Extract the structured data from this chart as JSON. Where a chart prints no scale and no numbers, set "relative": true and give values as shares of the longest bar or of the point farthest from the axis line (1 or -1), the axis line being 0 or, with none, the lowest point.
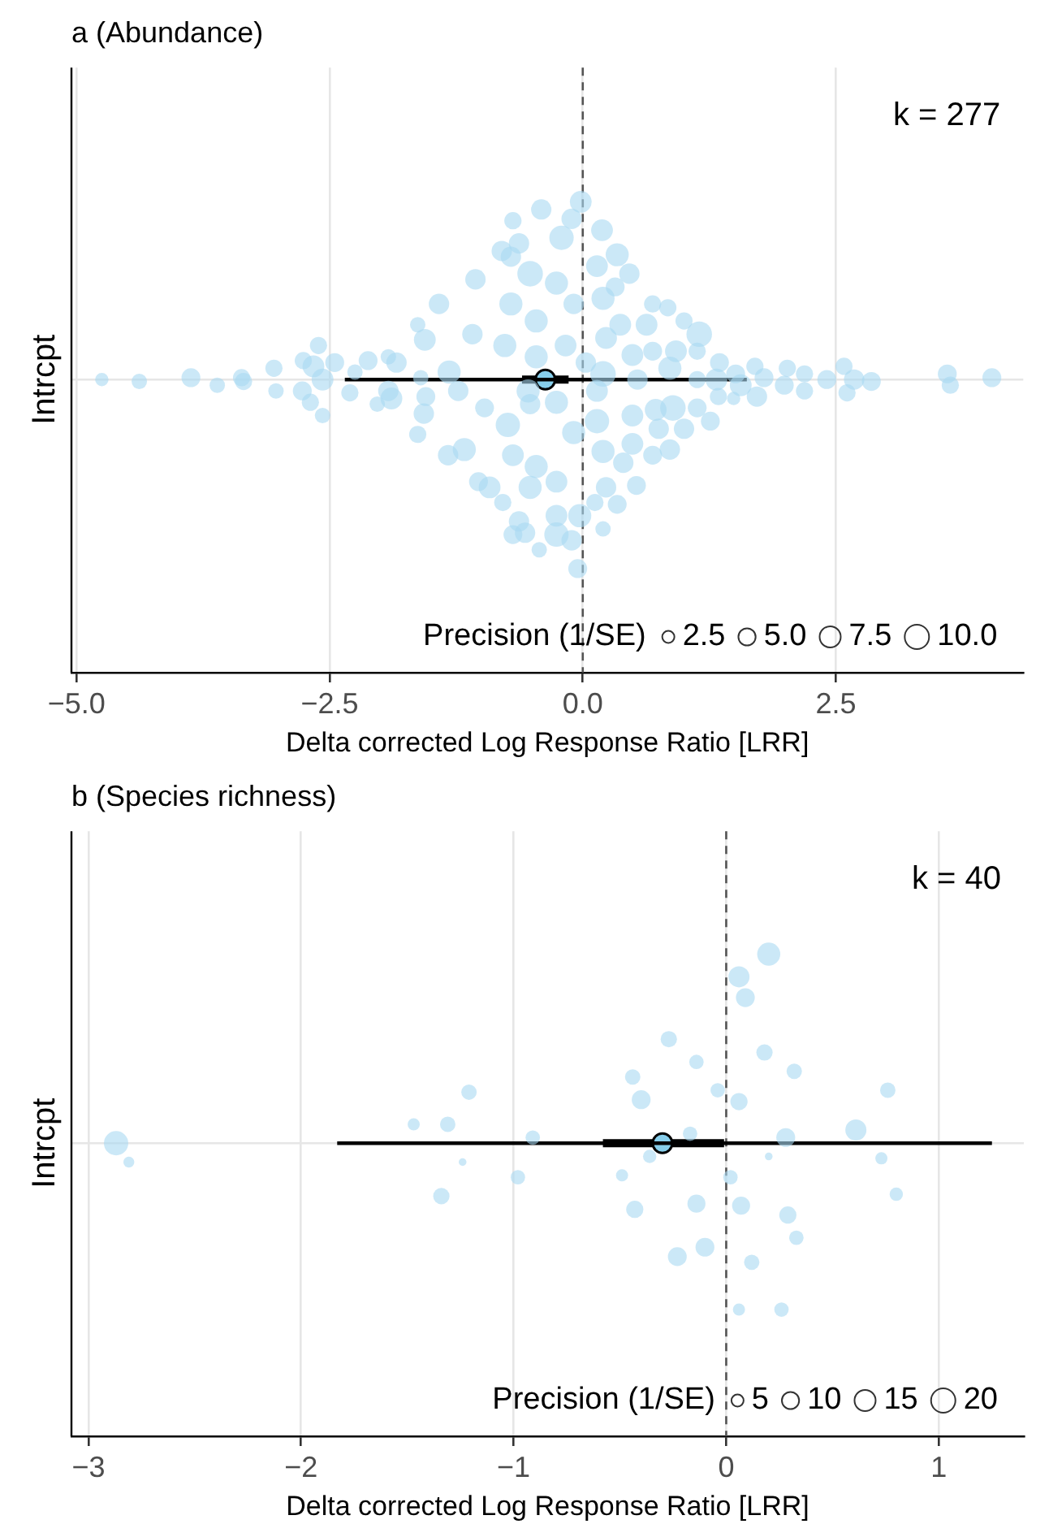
{
  "chart_data": [
    {
      "type": "bubble",
      "title": "a (Abundance)",
      "xlabel": "Delta corrected Log Response Ratio [LRR]",
      "legend_title": "Precision (1/SE)",
      "grid": true,
      "relative": true,
      "xlim": [
        -5.05,
        4.35
      ],
      "xticks": [
        {
          "value": -5,
          "label": "−5.0"
        },
        {
          "value": -2.5,
          "label": "−2.5"
        },
        {
          "value": 0,
          "label": "0.0"
        },
        {
          "value": 2.5,
          "label": "2.5"
        }
      ],
      "size_legend": [
        2.5,
        {
          "value": 5,
          "label": "5.0"
        },
        7.5,
        {
          "value": 10,
          "label": "10.0"
        }
      ],
      "ref_lines": [
        {
          "axis": "x",
          "value": 0,
          "color": "#555555",
          "line_style": "dashed"
        }
      ],
      "annotations": [
        "k = 277",
        "Intrcpt"
      ],
      "series": [
        {
          "color": "#a8d9f1",
          "x": [
            -4.75,
            -4.38,
            -3.87,
            -3.61,
            -3.37,
            -3.35,
            -3.05,
            -3.03,
            -2.61,
            -2.76,
            -2.66,
            -2.45,
            -2.77,
            -2.57,
            -2.69,
            -2.57,
            -2.3,
            -2.12,
            -2.25,
            -1.92,
            -1.84,
            -1.92,
            -1.89,
            -2.03,
            -1.42,
            -1.63,
            -1.56,
            -1.6,
            -1.32,
            -1.55,
            -1.57,
            -1.63,
            -1.33,
            -1.17,
            -1.06,
            -0.8,
            -1.09,
            -1.23,
            -0.97,
            -0.77,
            -0.71,
            -0.52,
            -0.63,
            -0.41,
            -0.69,
            -1.03,
            -0.92,
            -0.79,
            -0.63,
            -0.69,
            -0.43,
            -0.74,
            -0.69,
            -0.46,
            -0.52,
            -0.54,
            -0.46,
            -0.46,
            -0.11,
            0.19,
            -0.21,
            0.34,
            0.14,
            0.46,
            -0.26,
            0.32,
            0.2,
            -0.09,
            0.69,
            0.84,
            0.37,
            0.63,
            1.0,
            1.15,
            0.23,
            0.49,
            0.69,
            0.92,
            1.13,
            1.35,
            0.86,
            0.2,
            0.54,
            1.13,
            1.32,
            1.51,
            1.56,
            1.7,
            1.79,
            1.72,
            2.02,
            1.99,
            2.19,
            2.19,
            2.41,
            2.58,
            2.68,
            2.61,
            2.85,
            3.6,
            3.63,
            4.04,
            1.34,
            1.49,
            0.89,
            0.72,
            1.13,
            0.49,
            1.26,
            1.0,
            0.75,
            0.14,
            0.49,
            0.86,
            0.2,
            0.69,
            0.4,
            0.53,
            0.23,
            0.34,
            0.12,
            -0.03,
            -0.26,
            0.2,
            -0.26,
            -0.11,
            -0.57,
            -0.26,
            -0.09,
            -0.26,
            -0.52,
            0.14,
            -0.17,
            0.03,
            -0.71,
            -0.02,
            -0.05
          ],
          "values": [
            0,
            -0.01,
            0.01,
            -0.03,
            0.01,
            -0.01,
            0.06,
            -0.06,
            0.18,
            0.1,
            0.07,
            0.09,
            -0.06,
            0,
            -0.12,
            -0.19,
            -0.07,
            0.1,
            0.04,
            0.12,
            0.09,
            -0.06,
            -0.1,
            -0.13,
            0.4,
            0.29,
            0.21,
            0.01,
            0.04,
            -0.09,
            -0.18,
            -0.29,
            -0.4,
            -0.37,
            0.53,
            0.68,
            0.24,
            -0.06,
            -0.15,
            0.18,
            0.4,
            0.56,
            0.72,
            0.9,
            0.84,
            -0.54,
            -0.57,
            -0.65,
            -0.75,
            -0.82,
            -0.9,
            -0.24,
            -0.4,
            -0.46,
            -0.57,
            -0.06,
            0.12,
            0.31,
            0.85,
            0.79,
            0.75,
            0.66,
            0.6,
            0.56,
            0.51,
            0.49,
            0.43,
            0.4,
            0.4,
            0.38,
            0.29,
            0.29,
            0.31,
            0.24,
            0.22,
            0.13,
            0.15,
            0.15,
            0.15,
            0.09,
            0.06,
            0.03,
            0,
            0,
            0,
            0.03,
            -0.03,
            0.07,
            0.01,
            -0.09,
            0.06,
            -0.03,
            0.03,
            -0.06,
            0,
            0.07,
            0,
            -0.07,
            -0.01,
            0.03,
            -0.03,
            0.01,
            -0.09,
            -0.1,
            -0.15,
            -0.16,
            -0.15,
            -0.19,
            -0.22,
            -0.26,
            -0.26,
            -0.22,
            -0.34,
            -0.37,
            -0.38,
            -0.4,
            -0.44,
            -0.56,
            -0.57,
            -0.66,
            -0.65,
            -0.72,
            -0.72,
            -0.79,
            -0.82,
            -0.85,
            -0.81,
            -0.54,
            -0.28,
            -0.12,
            -0.13,
            -0.06,
            0.18,
            0.09,
            0.65,
            0.94,
            -1
          ],
          "sizes": [
            3,
            4,
            6,
            4,
            5,
            5,
            5,
            4,
            5,
            5,
            8,
            6,
            6,
            8,
            5,
            4,
            5,
            6,
            4,
            4,
            7,
            7,
            8,
            4,
            7,
            4,
            8,
            4,
            9,
            6,
            7,
            5,
            7,
            9,
            7,
            7,
            7,
            7,
            6,
            9,
            9,
            11,
            7,
            7,
            5,
            6,
            8,
            5,
            7,
            6,
            4,
            10,
            8,
            9,
            9,
            9,
            9,
            9,
            7,
            8,
            10,
            9,
            8,
            7,
            9,
            6,
            9,
            7,
            5,
            5,
            8,
            8,
            5,
            11,
            8,
            8,
            6,
            8,
            5,
            6,
            9,
            11,
            7,
            5,
            8,
            6,
            8,
            5,
            6,
            7,
            5,
            6,
            5,
            5,
            6,
            5,
            7,
            5,
            6,
            6,
            5,
            6,
            5,
            3,
            11,
            8,
            6,
            8,
            6,
            7,
            7,
            10,
            8,
            7,
            9,
            6,
            7,
            6,
            7,
            6,
            5,
            9,
            8,
            4,
            10,
            7,
            7,
            8,
            9,
            9,
            7,
            8,
            8,
            7,
            7,
            8,
            6
          ]
        },
        {
          "type": "line",
          "color": "#000000",
          "marker": "none",
          "x": [
            -2.35,
            1.62
          ],
          "values": [
            0,
            0
          ]
        },
        {
          "type": "scatter",
          "color": "#87ceeb",
          "marker": "circle",
          "x": [
            -0.37
          ],
          "values": [
            0
          ],
          "xerrors": [
            [
              -0.6,
              -0.14
            ]
          ]
        }
      ]
    },
    {
      "type": "bubble",
      "title": "b (Species richness)",
      "xlabel": "Delta corrected Log Response Ratio [LRR]",
      "legend_title": "Precision (1/SE)",
      "grid": true,
      "relative": true,
      "xlim": [
        -3.08,
        1.4
      ],
      "xticks": [
        {
          "value": -3,
          "label": "−3"
        },
        {
          "value": -2,
          "label": "−2"
        },
        {
          "value": -1,
          "label": "−1"
        },
        0,
        1
      ],
      "size_legend": [
        5,
        10,
        15,
        20
      ],
      "ref_lines": [
        {
          "axis": "x",
          "value": 0,
          "color": "#555555",
          "line_style": "dashed"
        }
      ],
      "annotations": [
        "k = 40",
        "Intrcpt"
      ],
      "series": [
        {
          "color": "#a8d9f1",
          "x": [
            0.2,
            0.06,
            0.09,
            -0.27,
            -0.14,
            0.18,
            0.32,
            -0.44,
            -0.4,
            -0.04,
            0.06,
            0.76,
            -0.17,
            0.28,
            0.61,
            -0.36,
            0.2,
            0.73,
            -0.49,
            0.02,
            0.8,
            -0.43,
            -0.14,
            0.07,
            0.29,
            0.33,
            -0.1,
            -0.23,
            0.12,
            0.06,
            0.26,
            -2.87,
            -2.81,
            -1.47,
            -1.31,
            -1.21,
            -1.24,
            -1.34,
            -0.98,
            -0.91
          ],
          "values": [
            1,
            0.88,
            0.77,
            0.55,
            0.43,
            0.48,
            0.38,
            0.35,
            0.23,
            0.28,
            0.22,
            0.28,
            0.05,
            0.03,
            0.07,
            -0.07,
            -0.07,
            -0.08,
            -0.17,
            -0.18,
            -0.27,
            -0.35,
            -0.32,
            -0.33,
            -0.38,
            -0.5,
            -0.55,
            -0.6,
            -0.63,
            -0.88,
            -0.88,
            0,
            -0.1,
            0.1,
            0.1,
            0.27,
            -0.1,
            -0.28,
            -0.18,
            0.03
          ],
          "sizes": [
            18,
            15,
            12,
            9,
            7,
            9,
            8,
            8,
            12,
            7,
            10,
            8,
            7,
            12,
            15,
            6,
            2,
            5,
            5,
            7,
            6,
            10,
            11,
            11,
            10,
            7,
            12,
            12,
            8,
            5,
            7,
            20,
            4,
            5,
            8,
            8,
            2,
            9,
            7,
            7
          ]
        },
        {
          "type": "line",
          "color": "#000000",
          "marker": "none",
          "x": [
            -1.83,
            1.25
          ],
          "values": [
            0,
            0
          ]
        },
        {
          "type": "scatter",
          "color": "#87ceeb",
          "marker": "circle",
          "x": [
            -0.3
          ],
          "values": [
            0
          ],
          "xerrors": [
            [
              -0.58,
              -0.01
            ]
          ]
        }
      ]
    }
  ]
}
